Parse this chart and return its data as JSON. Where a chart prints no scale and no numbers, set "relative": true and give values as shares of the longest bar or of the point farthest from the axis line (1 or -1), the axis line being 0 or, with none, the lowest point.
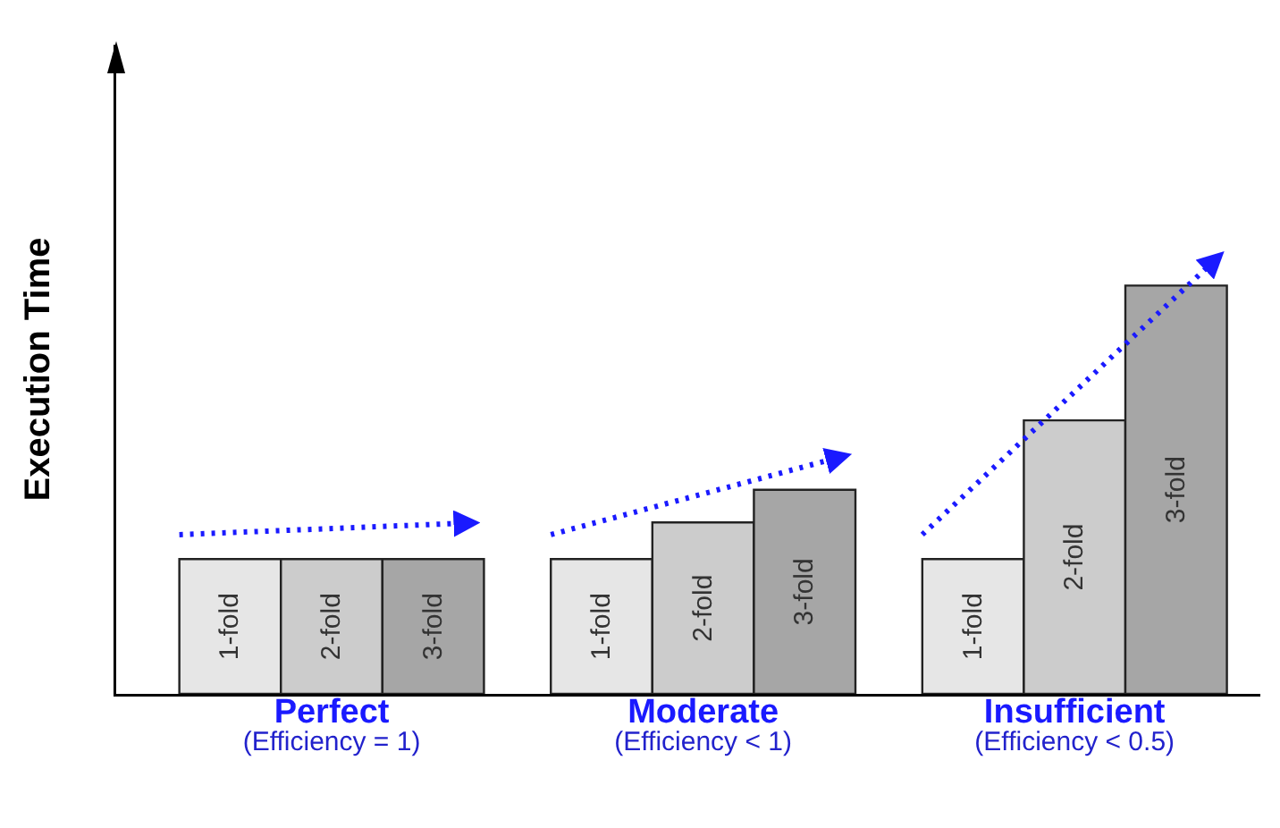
{
  "chart_data": {
    "type": "bar",
    "relative": true,
    "ylabel": "Execution Time",
    "categories": [
      "Perfect\n(Efficiency = 1)",
      "Moderate\n(Efficiency < 1)",
      "Insufficient\n(Efficiency < 0.5)"
    ],
    "series": [
      {
        "name": "1-fold",
        "color": "#e6e6e6",
        "values": [
          0.33,
          0.33,
          0.33
        ]
      },
      {
        "name": "2-fold",
        "color": "#cccccc",
        "values": [
          0.33,
          0.42,
          0.67
        ]
      },
      {
        "name": "3-fold",
        "color": "#a6a6a6",
        "values": [
          0.33,
          0.5,
          1
        ]
      }
    ],
    "grid": false,
    "legend": false
  }
}
